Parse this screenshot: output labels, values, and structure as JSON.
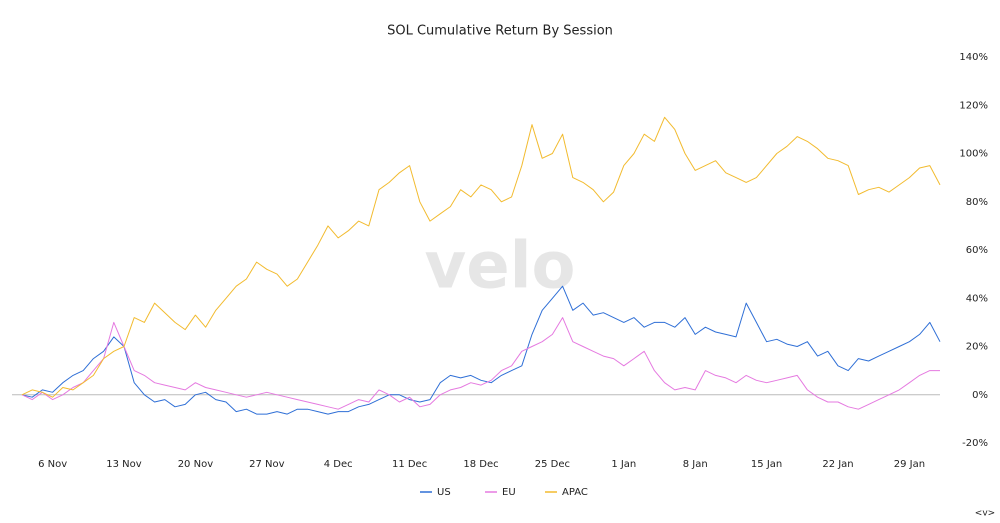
{
  "chart_data": {
    "type": "line",
    "title": "SOL Cumulative Return By Session",
    "watermark": "velo",
    "logo": "<v>",
    "categories": [
      "3 Nov",
      "4 Nov",
      "5 Nov",
      "6 Nov",
      "7 Nov",
      "8 Nov",
      "9 Nov",
      "10 Nov",
      "11 Nov",
      "12 Nov",
      "13 Nov",
      "14 Nov",
      "15 Nov",
      "16 Nov",
      "17 Nov",
      "18 Nov",
      "19 Nov",
      "20 Nov",
      "21 Nov",
      "22 Nov",
      "23 Nov",
      "24 Nov",
      "25 Nov",
      "26 Nov",
      "27 Nov",
      "28 Nov",
      "29 Nov",
      "30 Nov",
      "1 Dec",
      "2 Dec",
      "3 Dec",
      "4 Dec",
      "5 Dec",
      "6 Dec",
      "7 Dec",
      "8 Dec",
      "9 Dec",
      "10 Dec",
      "11 Dec",
      "12 Dec",
      "13 Dec",
      "14 Dec",
      "15 Dec",
      "16 Dec",
      "17 Dec",
      "18 Dec",
      "19 Dec",
      "20 Dec",
      "21 Dec",
      "22 Dec",
      "23 Dec",
      "24 Dec",
      "25 Dec",
      "26 Dec",
      "27 Dec",
      "28 Dec",
      "29 Dec",
      "30 Dec",
      "31 Dec",
      "1 Jan",
      "2 Jan",
      "3 Jan",
      "4 Jan",
      "5 Jan",
      "6 Jan",
      "7 Jan",
      "8 Jan",
      "9 Jan",
      "10 Jan",
      "11 Jan",
      "12 Jan",
      "13 Jan",
      "14 Jan",
      "15 Jan",
      "16 Jan",
      "17 Jan",
      "18 Jan",
      "19 Jan",
      "20 Jan",
      "21 Jan",
      "22 Jan",
      "23 Jan",
      "24 Jan",
      "25 Jan",
      "26 Jan",
      "27 Jan",
      "28 Jan",
      "29 Jan",
      "30 Jan",
      "31 Jan",
      "1 Feb"
    ],
    "xticks": [
      "6 Nov",
      "13 Nov",
      "20 Nov",
      "27 Nov",
      "4 Dec",
      "11 Dec",
      "18 Dec",
      "25 Dec",
      "1 Jan",
      "8 Jan",
      "15 Jan",
      "22 Jan",
      "29 Jan"
    ],
    "ylim": [
      -20,
      140
    ],
    "yticks": [
      {
        "value": -20,
        "label": "-20%"
      },
      {
        "value": 0,
        "label": "0%"
      },
      {
        "value": 20,
        "label": "20%"
      },
      {
        "value": 40,
        "label": "40%"
      },
      {
        "value": 60,
        "label": "60%"
      },
      {
        "value": 80,
        "label": "80%"
      },
      {
        "value": 100,
        "label": "100%"
      },
      {
        "value": 120,
        "label": "120%"
      },
      {
        "value": 140,
        "label": "140%"
      }
    ],
    "y_axis_side": "right",
    "legend": "bottom",
    "series": [
      {
        "name": "US",
        "color": "#2f6fd6",
        "values": [
          0,
          -1,
          2,
          1,
          5,
          8,
          10,
          15,
          18,
          24,
          20,
          5,
          0,
          -3,
          -2,
          -5,
          -4,
          0,
          1,
          -2,
          -3,
          -7,
          -6,
          -8,
          -8,
          -7,
          -8,
          -6,
          -6,
          -7,
          -8,
          -7,
          -7,
          -5,
          -4,
          -2,
          0,
          0,
          -2,
          -3,
          -2,
          5,
          8,
          7,
          8,
          6,
          5,
          8,
          10,
          12,
          25,
          35,
          40,
          45,
          35,
          38,
          33,
          34,
          32,
          30,
          32,
          28,
          30,
          30,
          28,
          32,
          25,
          28,
          26,
          25,
          24,
          38,
          30,
          22,
          23,
          21,
          20,
          22,
          16,
          18,
          12,
          10,
          15,
          14,
          16,
          18,
          20,
          22,
          25,
          30,
          22
        ]
      },
      {
        "name": "EU",
        "color": "#e57ae0",
        "values": [
          0,
          -2,
          1,
          -2,
          0,
          3,
          5,
          10,
          15,
          30,
          20,
          10,
          8,
          5,
          4,
          3,
          2,
          5,
          3,
          2,
          1,
          0,
          -1,
          0,
          1,
          0,
          -1,
          -2,
          -3,
          -4,
          -5,
          -6,
          -4,
          -2,
          -3,
          2,
          0,
          -3,
          -1,
          -5,
          -4,
          0,
          2,
          3,
          5,
          4,
          6,
          10,
          12,
          18,
          20,
          22,
          25,
          32,
          22,
          20,
          18,
          16,
          15,
          12,
          15,
          18,
          10,
          5,
          2,
          3,
          2,
          10,
          8,
          7,
          5,
          8,
          6,
          5,
          6,
          7,
          8,
          2,
          -1,
          -3,
          -3,
          -5,
          -6,
          -4,
          -2,
          0,
          2,
          5,
          8,
          10,
          10
        ]
      },
      {
        "name": "APAC",
        "color": "#f2bb2f",
        "values": [
          0,
          2,
          1,
          -1,
          3,
          2,
          5,
          8,
          15,
          18,
          20,
          32,
          30,
          38,
          34,
          30,
          27,
          33,
          28,
          35,
          40,
          45,
          48,
          55,
          52,
          50,
          45,
          48,
          55,
          62,
          70,
          65,
          68,
          72,
          70,
          85,
          88,
          92,
          95,
          80,
          72,
          75,
          78,
          85,
          82,
          87,
          85,
          80,
          82,
          95,
          112,
          98,
          100,
          108,
          90,
          88,
          85,
          80,
          84,
          95,
          100,
          108,
          105,
          115,
          110,
          100,
          93,
          95,
          97,
          92,
          90,
          88,
          90,
          95,
          100,
          103,
          107,
          105,
          102,
          98,
          97,
          95,
          83,
          85,
          86,
          84,
          87,
          90,
          94,
          95,
          87
        ]
      }
    ]
  }
}
